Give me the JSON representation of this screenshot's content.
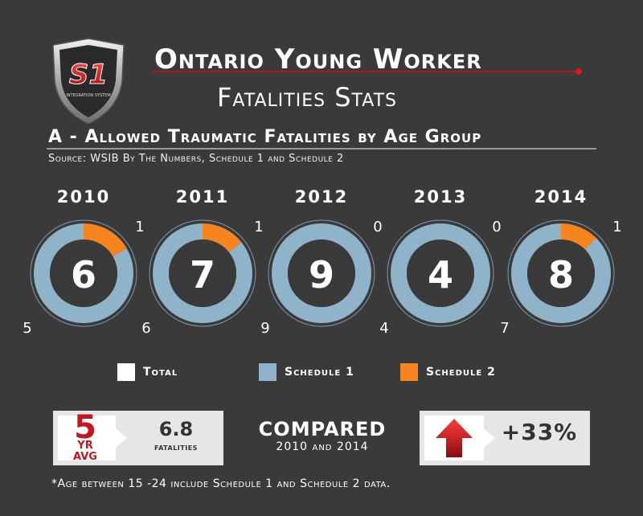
{
  "header": {
    "logo_text": "S1",
    "logo_sub": "INTEGRATION SYSTEM",
    "title_line1": "Ontario Young Worker",
    "title_line2": "Fatalities Stats"
  },
  "subtitle": "A - Allowed Traumatic Fatalities by Age Group",
  "source": "Source: WSIB  By The Numbers, Schedule 1 and Schedule 2",
  "legend": {
    "total": "Total",
    "schedule1": "Schedule 1",
    "schedule2": "Schedule 2"
  },
  "colors": {
    "background": "#3a3a3a",
    "total": "#ffffff",
    "schedule1": "#8fb3c9",
    "schedule2": "#f6851f",
    "accent": "#c4161c",
    "donut_center": "#3a3a3a"
  },
  "chart_data": {
    "type": "pie",
    "variant": "donut",
    "categories": [
      "2010",
      "2011",
      "2012",
      "2013",
      "2014"
    ],
    "series": [
      {
        "name": "Total",
        "values": [
          6,
          7,
          9,
          4,
          8
        ]
      },
      {
        "name": "Schedule 1",
        "values": [
          5,
          6,
          9,
          4,
          7
        ]
      },
      {
        "name": "Schedule 2",
        "values": [
          1,
          1,
          0,
          0,
          1
        ]
      }
    ],
    "title": "A - Allowed Traumatic Fatalities by Age Group",
    "legend_position": "bottom"
  },
  "summary": {
    "avg_number": "5",
    "avg_label_line1": "YR",
    "avg_label_line2": "AVG",
    "avg_value": "6.8",
    "avg_unit": "fatalities",
    "compared_title": "COMPARED",
    "compared_sub": "2010 and 2014",
    "change": "+33%"
  },
  "footnote": "*Age between 15 -24 include Schedule 1 and Schedule 2 data."
}
